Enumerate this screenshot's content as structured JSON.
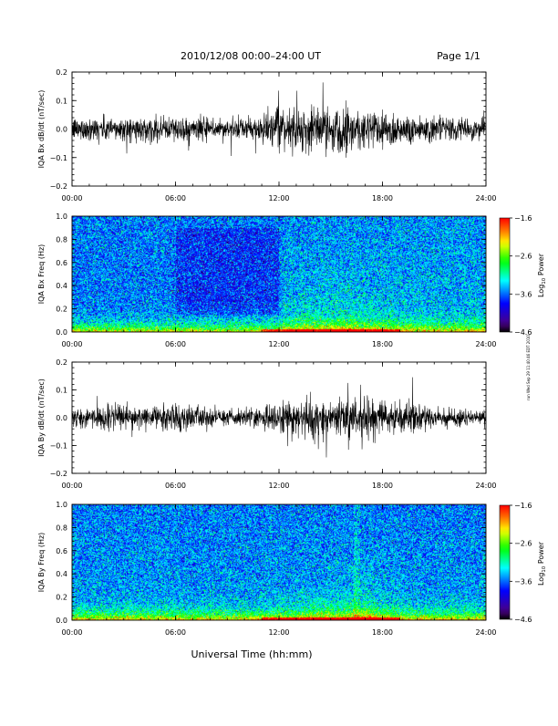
{
  "header": {
    "date_label": "2010/12/08  00:00–24:00 UT",
    "page_label": "Page 1/1"
  },
  "footer": {
    "xlabel": "Universal Time (hh:mm)"
  },
  "side_stamp": "run Wed Sep 29 11:40:46 EDT 2010",
  "colors": {
    "colormap": [
      "#000000",
      "#4b0082",
      "#0000ff",
      "#00ffff",
      "#00ff00",
      "#ffff00",
      "#ff7f00",
      "#ff0000"
    ]
  },
  "chart_data": [
    {
      "type": "line",
      "ylabel": "IQA Bx dB/dt (nT/sec)",
      "ylim": [
        -0.2,
        0.2
      ],
      "yticks": [
        "0.2",
        "0.1",
        "0.0",
        "−0.1",
        "−0.2"
      ],
      "yvalues": [
        0.2,
        0.1,
        0.0,
        -0.1,
        -0.2
      ],
      "xlim": [
        0,
        24
      ],
      "xticks": [
        "00:00",
        "06:00",
        "12:00",
        "18:00",
        "24:00"
      ],
      "xvalues": [
        0,
        6,
        12,
        18,
        24
      ],
      "activity_profile": {
        "hours": [
          0,
          2,
          4,
          6,
          8,
          10,
          11,
          12,
          13,
          14,
          15,
          16,
          17,
          18,
          19,
          20,
          22,
          24
        ],
        "amplitude": [
          0.035,
          0.04,
          0.035,
          0.04,
          0.035,
          0.03,
          0.045,
          0.06,
          0.065,
          0.07,
          0.07,
          0.075,
          0.065,
          0.06,
          0.05,
          0.045,
          0.035,
          0.03
        ]
      }
    },
    {
      "type": "heatmap",
      "ylabel": "IQA Bx Freq (Hz)",
      "ylim": [
        0.0,
        1.0
      ],
      "yticks": [
        "1.0",
        "0.8",
        "0.6",
        "0.4",
        "0.2",
        "0.0"
      ],
      "yvalues": [
        1.0,
        0.8,
        0.6,
        0.4,
        0.2,
        0.0
      ],
      "xlim": [
        0,
        24
      ],
      "xticks": [
        "00:00",
        "06:00",
        "12:00",
        "18:00",
        "24:00"
      ],
      "xvalues": [
        0,
        6,
        12,
        18,
        24
      ],
      "colorbar": {
        "label": "Log10 Power",
        "label_base": "Log",
        "label_sub": "10",
        "label_rest": " Power",
        "range": [
          -4.6,
          -1.6
        ],
        "ticks": [
          "−1.6",
          "−2.6",
          "−3.6",
          "−4.6"
        ],
        "tick_values": [
          -1.6,
          -2.6,
          -3.6,
          -4.6
        ]
      }
    },
    {
      "type": "line",
      "ylabel": "IQA By dB/dt (nT/sec)",
      "ylim": [
        -0.2,
        0.2
      ],
      "yticks": [
        "0.2",
        "0.1",
        "0.0",
        "−0.1",
        "−0.2"
      ],
      "yvalues": [
        0.2,
        0.1,
        0.0,
        -0.1,
        -0.2
      ],
      "xlim": [
        0,
        24
      ],
      "xticks": [
        "00:00",
        "06:00",
        "12:00",
        "18:00",
        "24:00"
      ],
      "xvalues": [
        0,
        6,
        12,
        18,
        24
      ],
      "activity_profile": {
        "hours": [
          0,
          2,
          4,
          6,
          8,
          10,
          11,
          12,
          13,
          14,
          15,
          16,
          17,
          18,
          19,
          20,
          22,
          24
        ],
        "amplitude": [
          0.03,
          0.04,
          0.035,
          0.045,
          0.03,
          0.025,
          0.04,
          0.05,
          0.06,
          0.065,
          0.06,
          0.07,
          0.06,
          0.055,
          0.05,
          0.04,
          0.03,
          0.025
        ]
      }
    },
    {
      "type": "heatmap",
      "ylabel": "IQA By Freq (Hz)",
      "ylim": [
        0.0,
        1.0
      ],
      "yticks": [
        "1.0",
        "0.8",
        "0.6",
        "0.4",
        "0.2",
        "0.0"
      ],
      "yvalues": [
        1.0,
        0.8,
        0.6,
        0.4,
        0.2,
        0.0
      ],
      "xlim": [
        0,
        24
      ],
      "xticks": [
        "00:00",
        "06:00",
        "12:00",
        "18:00",
        "24:00"
      ],
      "xvalues": [
        0,
        6,
        12,
        18,
        24
      ],
      "colorbar": {
        "label": "Log10 Power",
        "label_base": "Log",
        "label_sub": "10",
        "label_rest": " Power",
        "range": [
          -4.6,
          -1.6
        ],
        "ticks": [
          "−1.6",
          "−2.6",
          "−3.6",
          "−4.6"
        ],
        "tick_values": [
          -1.6,
          -2.6,
          -3.6,
          -4.6
        ]
      }
    }
  ]
}
